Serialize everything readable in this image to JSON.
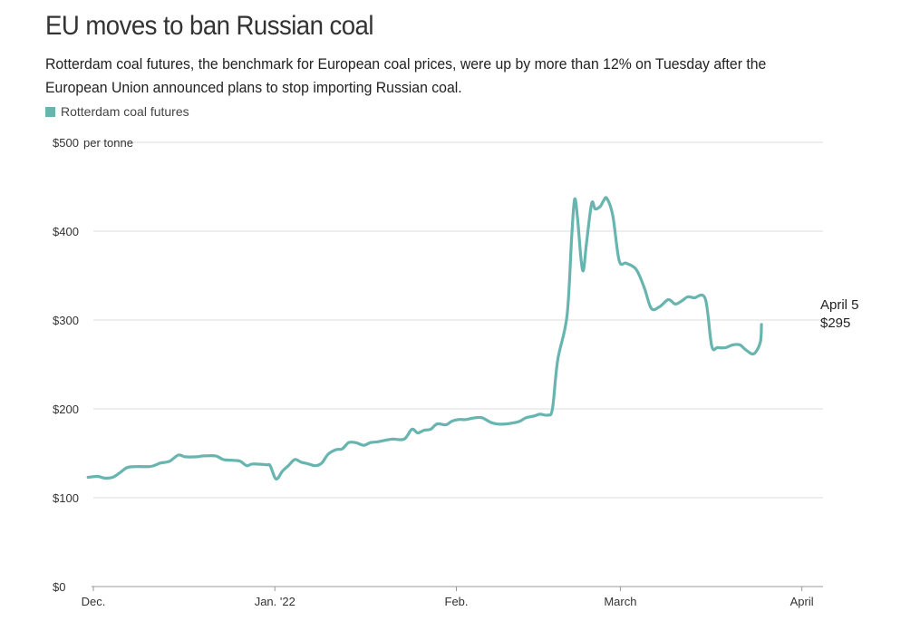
{
  "title": "EU moves to ban Russian coal",
  "subtitle": "Rotterdam coal futures, the benchmark for European coal prices, were up by more than 12% on Tuesday after the European Union announced plans to stop importing Russian coal.",
  "colors": {
    "line": "#68b5b0",
    "grid": "#dddddd",
    "axis": "#999999",
    "text": "#333333"
  },
  "chart_data": {
    "type": "line",
    "title": "EU moves to ban Russian coal",
    "ylabel": "per tonne",
    "xlabel": "",
    "ylim": [
      0,
      500
    ],
    "y_ticks": [
      {
        "value": 0,
        "label": "$0"
      },
      {
        "value": 100,
        "label": "$100"
      },
      {
        "value": 200,
        "label": "$200"
      },
      {
        "value": 300,
        "label": "$300"
      },
      {
        "value": 400,
        "label": "$400"
      },
      {
        "value": 500,
        "label": "$500"
      }
    ],
    "y_unit_label": "per tonne",
    "x_ticks": [
      {
        "day": 0,
        "label": "Dec."
      },
      {
        "day": 31,
        "label": "Jan. '22"
      },
      {
        "day": 62,
        "label": "Feb."
      },
      {
        "day": 90,
        "label": "March"
      },
      {
        "day": 121,
        "label": "April"
      }
    ],
    "x_range_days": [
      0,
      124
    ],
    "legend": [
      {
        "name": "Rotterdam coal futures",
        "color": "#68b5b0"
      }
    ],
    "series": [
      {
        "name": "Rotterdam coal futures",
        "points": [
          [
            -0.9,
            123
          ],
          [
            0.7,
            124
          ],
          [
            2.0,
            122
          ],
          [
            3.3,
            123
          ],
          [
            4.5,
            128
          ],
          [
            5.8,
            134
          ],
          [
            7.4,
            135
          ],
          [
            9.6,
            135
          ],
          [
            10.7,
            137
          ],
          [
            11.4,
            139
          ],
          [
            13.0,
            141
          ],
          [
            14.5,
            148
          ],
          [
            15.7,
            146
          ],
          [
            17.5,
            146
          ],
          [
            18.8,
            147
          ],
          [
            20.9,
            147
          ],
          [
            22.2,
            143
          ],
          [
            24.0,
            142
          ],
          [
            25.1,
            141
          ],
          [
            26.2,
            136
          ],
          [
            27.2,
            138
          ],
          [
            29.6,
            137
          ],
          [
            30.2,
            136
          ],
          [
            31.2,
            121
          ],
          [
            32.3,
            130
          ],
          [
            33.3,
            136
          ],
          [
            34.4,
            143
          ],
          [
            35.5,
            140
          ],
          [
            36.8,
            138
          ],
          [
            37.9,
            136
          ],
          [
            39.0,
            139
          ],
          [
            40.1,
            149
          ],
          [
            41.4,
            154
          ],
          [
            42.5,
            155
          ],
          [
            43.6,
            162
          ],
          [
            44.8,
            162
          ],
          [
            46.2,
            159
          ],
          [
            47.3,
            162
          ],
          [
            48.6,
            163
          ],
          [
            50.1,
            165
          ],
          [
            51.2,
            166
          ],
          [
            53.1,
            166
          ],
          [
            54.4,
            177
          ],
          [
            55.4,
            173
          ],
          [
            56.5,
            176
          ],
          [
            57.6,
            177
          ],
          [
            58.7,
            183
          ],
          [
            60.2,
            182
          ],
          [
            61.2,
            186
          ],
          [
            62.3,
            188
          ],
          [
            63.6,
            188
          ],
          [
            65.2,
            190
          ],
          [
            66.4,
            190
          ],
          [
            67.8,
            185
          ],
          [
            69.0,
            183
          ],
          [
            70.4,
            183
          ],
          [
            71.5,
            184
          ],
          [
            72.8,
            186
          ],
          [
            73.9,
            190
          ],
          [
            75.3,
            192
          ],
          [
            76.3,
            194
          ],
          [
            77.6,
            193
          ],
          [
            78.4,
            200
          ],
          [
            79.3,
            255
          ],
          [
            80.9,
            305
          ],
          [
            81.7,
            395
          ],
          [
            82.2,
            436
          ],
          [
            82.7,
            414
          ],
          [
            83.3,
            368
          ],
          [
            83.7,
            356
          ],
          [
            84.2,
            385
          ],
          [
            85.1,
            431
          ],
          [
            85.7,
            425
          ],
          [
            86.6,
            428
          ],
          [
            87.1,
            434
          ],
          [
            87.7,
            437
          ],
          [
            88.7,
            418
          ],
          [
            89.8,
            367
          ],
          [
            91.0,
            364
          ],
          [
            92.7,
            357
          ],
          [
            94.1,
            336
          ],
          [
            95.3,
            313
          ],
          [
            96.7,
            315
          ],
          [
            98.2,
            323
          ],
          [
            99.4,
            318
          ],
          [
            100.6,
            322
          ],
          [
            101.5,
            326
          ],
          [
            102.6,
            325
          ],
          [
            104.5,
            324
          ],
          [
            105.6,
            271
          ],
          [
            106.6,
            269
          ],
          [
            108.0,
            269
          ],
          [
            109.2,
            272
          ],
          [
            110.4,
            272
          ],
          [
            111.5,
            266
          ],
          [
            112.8,
            262
          ],
          [
            113.9,
            275
          ],
          [
            114.1,
            295
          ]
        ]
      }
    ],
    "annotation": {
      "line1": "April 5",
      "line2": "$295"
    }
  },
  "legend_label": "Rotterdam coal futures"
}
